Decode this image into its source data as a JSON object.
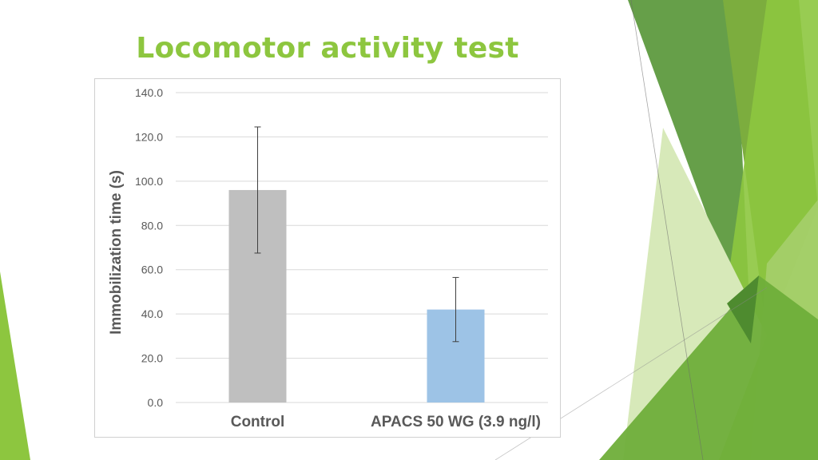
{
  "slide": {
    "title": "Locomotor activity test"
  },
  "theme": {
    "title_color": "#8dc63f",
    "decor_colors": [
      "#5a8f3a",
      "#7cad3e",
      "#8dc63f",
      "#a5cf6b",
      "#d7e9b9",
      "#4e8b2f"
    ]
  },
  "chart_data": {
    "type": "bar",
    "title": "",
    "xlabel": "",
    "ylabel": "Immobilization time (s)",
    "ylim": [
      0,
      140
    ],
    "ytick_step": 20,
    "ytick_labels": [
      "0.0",
      "20.0",
      "40.0",
      "60.0",
      "80.0",
      "100.0",
      "120.0",
      "140.0"
    ],
    "grid": true,
    "legend": "none",
    "categories": [
      "Control",
      "APACS 50 WG (3.9 ng/l)"
    ],
    "series": [
      {
        "values": [
          96.0,
          42.0
        ],
        "error": [
          28.5,
          14.5
        ],
        "colors": [
          "#bfbfbf",
          "#9dc3e6"
        ]
      }
    ]
  }
}
